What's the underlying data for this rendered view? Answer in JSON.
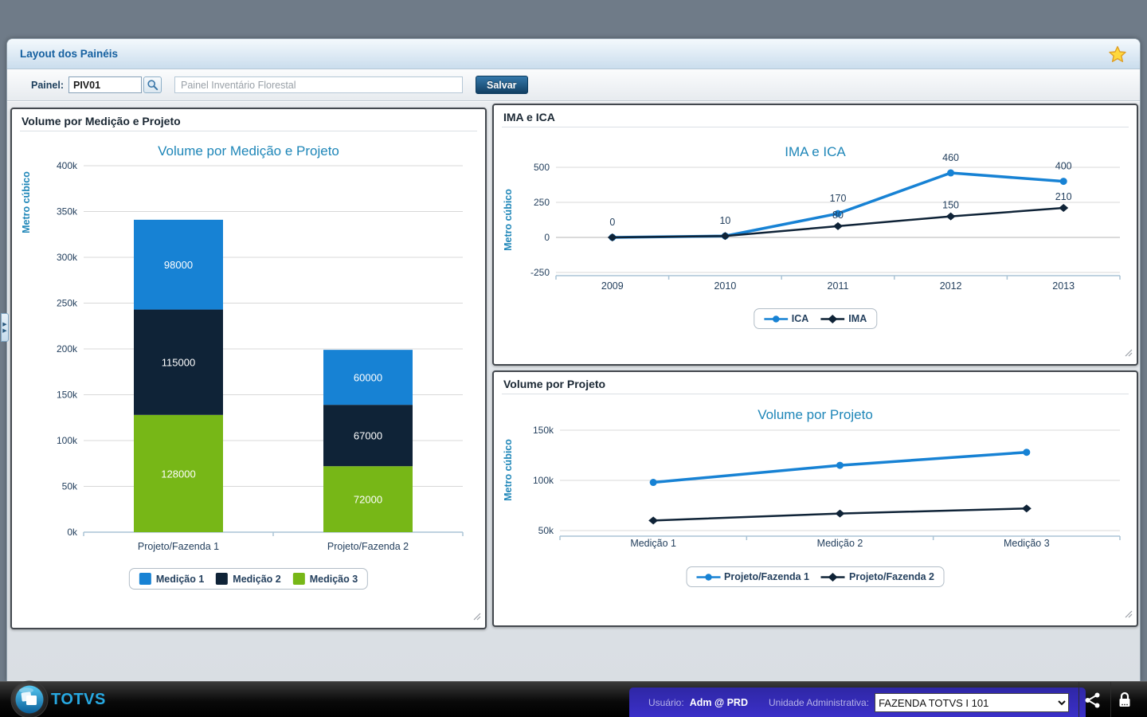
{
  "window": {
    "title": "Layout dos Painéis"
  },
  "toolbar": {
    "painel_label": "Painel:",
    "painel_code": "PIV01",
    "painel_name": "Painel Inventário Florestal",
    "save_label": "Salvar"
  },
  "panels": [
    {
      "title": "Volume por Medição e Projeto"
    },
    {
      "title": "IMA e ICA"
    },
    {
      "title": "Volume por Projeto"
    }
  ],
  "footer": {
    "brand": "TOTVS",
    "user_label": "Usuário:",
    "user_value": "Adm @ PRD",
    "unit_label": "Unidade Administrativa:",
    "unit_value": "FAZENDA TOTVS I 101"
  },
  "colors": {
    "accent_blue": "#1782d4",
    "navy": "#0f2337",
    "green": "#77b717",
    "title_teal": "#1e86b8",
    "tick_text": "#24405e"
  },
  "chart_data": [
    {
      "type": "bar",
      "stacked": true,
      "title": "Volume por Medição e Projeto",
      "ylabel": "Metro cúbico",
      "categories": [
        "Projeto/Fazenda 1",
        "Projeto/Fazenda 2"
      ],
      "series": [
        {
          "name": "Medição 1",
          "color": "#1782d4",
          "values": [
            98000,
            60000
          ]
        },
        {
          "name": "Medição 2",
          "color": "#0f2337",
          "values": [
            115000,
            67000
          ]
        },
        {
          "name": "Medição 3",
          "color": "#77b717",
          "values": [
            128000,
            72000
          ]
        }
      ],
      "stack_bottom_to_top": [
        2,
        1,
        0
      ],
      "ylim": [
        0,
        400000
      ],
      "yticks": [
        400000,
        350000,
        300000,
        250000,
        200000,
        150000,
        100000,
        50000,
        0
      ],
      "ytick_format": "k",
      "show_values": true,
      "grid": true,
      "legend_position": "bottom"
    },
    {
      "type": "line",
      "title": "IMA e ICA",
      "ylabel": "Metro cúbico",
      "x": [
        "2009",
        "2010",
        "2011",
        "2012",
        "2013"
      ],
      "series": [
        {
          "name": "ICA",
          "color": "#1782d4",
          "marker": "circle",
          "values": [
            0,
            10,
            170,
            460,
            400
          ],
          "point_labels": [
            "0",
            "10",
            "170",
            "460",
            "400"
          ]
        },
        {
          "name": "IMA",
          "color": "#0f2337",
          "marker": "diamond",
          "values": [
            0,
            10,
            80,
            150,
            210
          ],
          "point_labels": [
            "",
            "",
            "80",
            "150",
            "210"
          ]
        }
      ],
      "ylim": [
        -250,
        500
      ],
      "yticks": [
        500,
        250,
        0,
        -250
      ],
      "ytick_format": "plain",
      "grid": true,
      "legend_position": "bottom"
    },
    {
      "type": "line",
      "title": "Volume por Projeto",
      "ylabel": "Metro cúbico",
      "x": [
        "Medição 1",
        "Medição 2",
        "Medição 3"
      ],
      "series": [
        {
          "name": "Projeto/Fazenda 1",
          "color": "#1782d4",
          "marker": "circle",
          "values": [
            98000,
            115000,
            128000
          ]
        },
        {
          "name": "Projeto/Fazenda 2",
          "color": "#0f2337",
          "marker": "diamond",
          "values": [
            60000,
            67000,
            72000
          ]
        }
      ],
      "ylim": [
        50000,
        150000
      ],
      "yticks": [
        150000,
        100000,
        50000
      ],
      "ytick_format": "k",
      "grid": true,
      "legend_position": "bottom"
    }
  ]
}
